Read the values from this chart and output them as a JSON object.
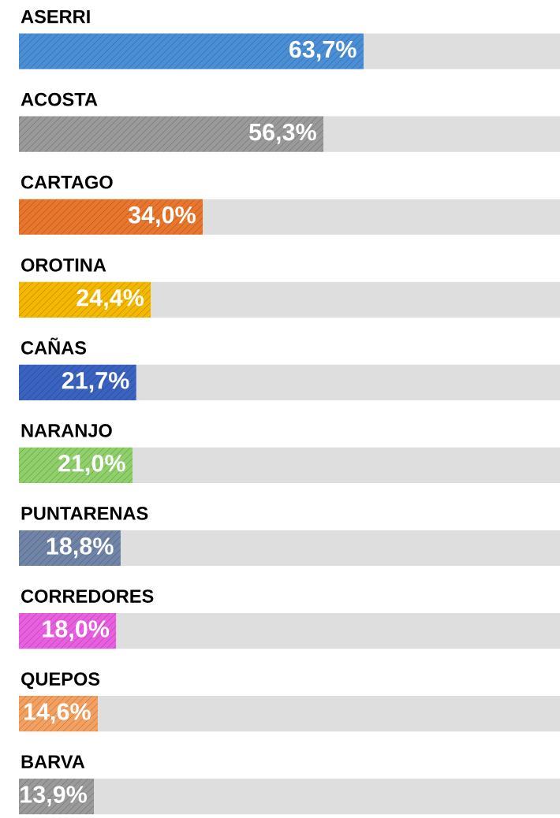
{
  "chart_data": {
    "type": "bar",
    "orientation": "horizontal",
    "stacked": true,
    "categories": [
      "ASERRI",
      "ACOSTA",
      "CARTAGO",
      "OROTINA",
      "CAÑAS",
      "NARANJO",
      "PUNTARENAS",
      "CORREDORES",
      "QUEPOS",
      "BARVA"
    ],
    "xlim": [
      0,
      100
    ],
    "series": [
      {
        "colors": [
          "#4a8fd6",
          "#9a9a9a",
          "#e8762c",
          "#f5b800",
          "#3a62c0",
          "#8fd06a",
          "#6f84a6",
          "#e85fe0",
          "#f4a060",
          "#9a9a9a"
        ],
        "values": [
          63.7,
          56.3,
          34.0,
          24.4,
          21.7,
          21.0,
          18.8,
          18.0,
          14.6,
          13.9
        ],
        "value_labels": [
          "63,7%",
          "56,3%",
          "34,0%",
          "24,4%",
          "21,7%",
          "21,0%",
          "18,8%",
          "18,0%",
          "14,6%",
          "13,9%"
        ]
      },
      {
        "color": "#dedede",
        "values": [
          36.3,
          43.7,
          66.0,
          75.6,
          78.3,
          79.0,
          81.2,
          82.0,
          85.4,
          86.1
        ]
      }
    ]
  }
}
